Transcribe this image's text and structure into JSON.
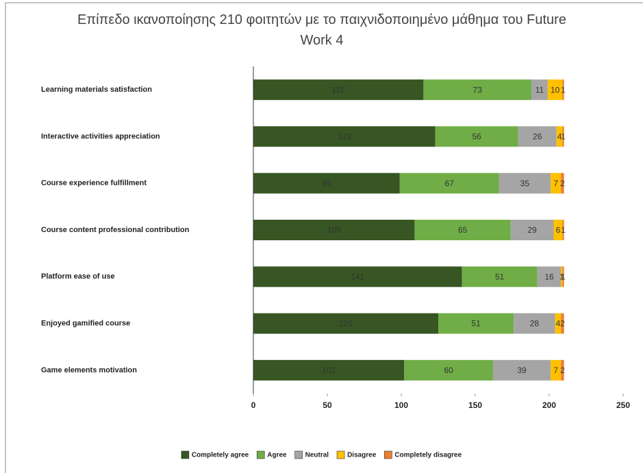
{
  "chart_data": {
    "type": "stacked_barh",
    "title": "Επίπεδο ικανοποίησης 210 φοιτητών με το παιχνιδοποιημένο μάθημα του Future Work 4",
    "categories": [
      "Learning materials satisfaction",
      "Interactive activities appreciation",
      "Course experience fulfillment",
      "Course content professional contribution",
      "Platform ease of use",
      "Enjoyed gamified course",
      "Game elements motivation"
    ],
    "series": [
      {
        "name": "Completely agree",
        "color": "#375623",
        "values": [
          115,
          123,
          99,
          109,
          141,
          125,
          102
        ]
      },
      {
        "name": "Agree",
        "color": "#70ad47",
        "values": [
          73,
          56,
          67,
          65,
          51,
          51,
          60
        ]
      },
      {
        "name": "Neutral",
        "color": "#a5a5a5",
        "values": [
          11,
          26,
          35,
          29,
          16,
          28,
          39
        ]
      },
      {
        "name": "Disagree",
        "color": "#ffc000",
        "values": [
          10,
          4,
          7,
          6,
          1,
          4,
          7
        ]
      },
      {
        "name": "Completely disagree",
        "color": "#ed7d31",
        "values": [
          1,
          1,
          2,
          1,
          1,
          2,
          2
        ]
      }
    ],
    "xlim": [
      0,
      250
    ],
    "xticks": [
      0,
      50,
      100,
      150,
      200,
      250
    ],
    "legend": "bottom"
  }
}
